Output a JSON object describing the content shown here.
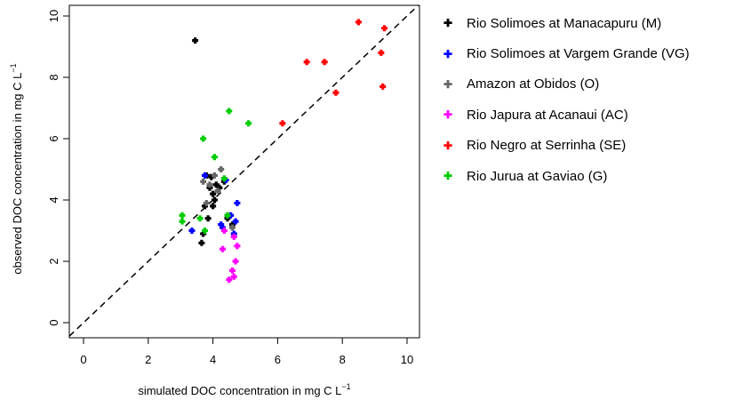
{
  "chart_data": {
    "type": "scatter",
    "xlabel": "simulated DOC concentration in mg C L",
    "xlabel_sup": "−1",
    "ylabel": "observed DOC concentration in mg C L",
    "ylabel_sup": "−1",
    "xlim": [
      0,
      10
    ],
    "ylim": [
      0,
      10
    ],
    "xticks": [
      "0",
      "2",
      "4",
      "6",
      "8",
      "10"
    ],
    "yticks": [
      "0",
      "2",
      "4",
      "6",
      "8",
      "10"
    ],
    "grid": false,
    "legend_position": "right-outside",
    "reference_line": "1:1 dashed",
    "series": [
      {
        "name": "Rio Solimoes at Manacapuru (M)",
        "color": "#000000",
        "points": [
          [
            3.45,
            9.2
          ],
          [
            3.65,
            2.6
          ],
          [
            3.7,
            2.9
          ],
          [
            3.75,
            3.8
          ],
          [
            3.8,
            4.8
          ],
          [
            3.85,
            3.4
          ],
          [
            3.9,
            4.4
          ],
          [
            3.95,
            4.75
          ],
          [
            4.0,
            3.8
          ],
          [
            4.0,
            4.2
          ],
          [
            4.05,
            4.0
          ],
          [
            4.1,
            4.5
          ],
          [
            4.2,
            4.4
          ],
          [
            4.35,
            4.6
          ],
          [
            4.45,
            3.4
          ],
          [
            4.6,
            3.2
          ]
        ]
      },
      {
        "name": "Rio Solimoes at Vargem Grande (VG)",
        "color": "#0000ff",
        "points": [
          [
            3.35,
            3.0
          ],
          [
            3.75,
            4.8
          ],
          [
            4.25,
            3.2
          ],
          [
            4.3,
            3.1
          ],
          [
            4.4,
            4.65
          ],
          [
            4.55,
            3.5
          ],
          [
            4.65,
            2.9
          ],
          [
            4.7,
            3.3
          ],
          [
            4.75,
            3.9
          ]
        ]
      },
      {
        "name": "Amazon at Obidos (O)",
        "color": "#666666",
        "points": [
          [
            3.7,
            4.6
          ],
          [
            3.8,
            3.9
          ],
          [
            3.9,
            4.5
          ],
          [
            4.05,
            4.8
          ],
          [
            4.15,
            4.3
          ],
          [
            4.25,
            5.0
          ],
          [
            4.35,
            4.7
          ],
          [
            4.45,
            3.5
          ],
          [
            4.6,
            3.1
          ]
        ]
      },
      {
        "name": "Rio Japura at Acanaui (AC)",
        "color": "#ff00ff",
        "points": [
          [
            4.3,
            2.4
          ],
          [
            4.35,
            3.0
          ],
          [
            4.5,
            1.4
          ],
          [
            4.6,
            1.7
          ],
          [
            4.65,
            2.8
          ],
          [
            4.65,
            1.5
          ],
          [
            4.7,
            2.0
          ],
          [
            4.75,
            2.5
          ]
        ]
      },
      {
        "name": "Rio Negro at Serrinha (SE)",
        "color": "#ff0000",
        "points": [
          [
            6.15,
            6.5
          ],
          [
            6.9,
            8.5
          ],
          [
            7.45,
            8.5
          ],
          [
            7.8,
            7.5
          ],
          [
            8.5,
            9.8
          ],
          [
            9.2,
            8.8
          ],
          [
            9.25,
            7.7
          ],
          [
            9.3,
            9.6
          ]
        ]
      },
      {
        "name": "Rio Jurua at Gaviao (G)",
        "color": "#00cc00",
        "points": [
          [
            3.05,
            3.5
          ],
          [
            3.05,
            3.3
          ],
          [
            3.6,
            3.4
          ],
          [
            3.7,
            6.0
          ],
          [
            3.75,
            3.0
          ],
          [
            4.05,
            5.4
          ],
          [
            4.35,
            4.7
          ],
          [
            4.45,
            3.5
          ],
          [
            4.5,
            6.9
          ],
          [
            5.1,
            6.5
          ]
        ]
      }
    ]
  }
}
